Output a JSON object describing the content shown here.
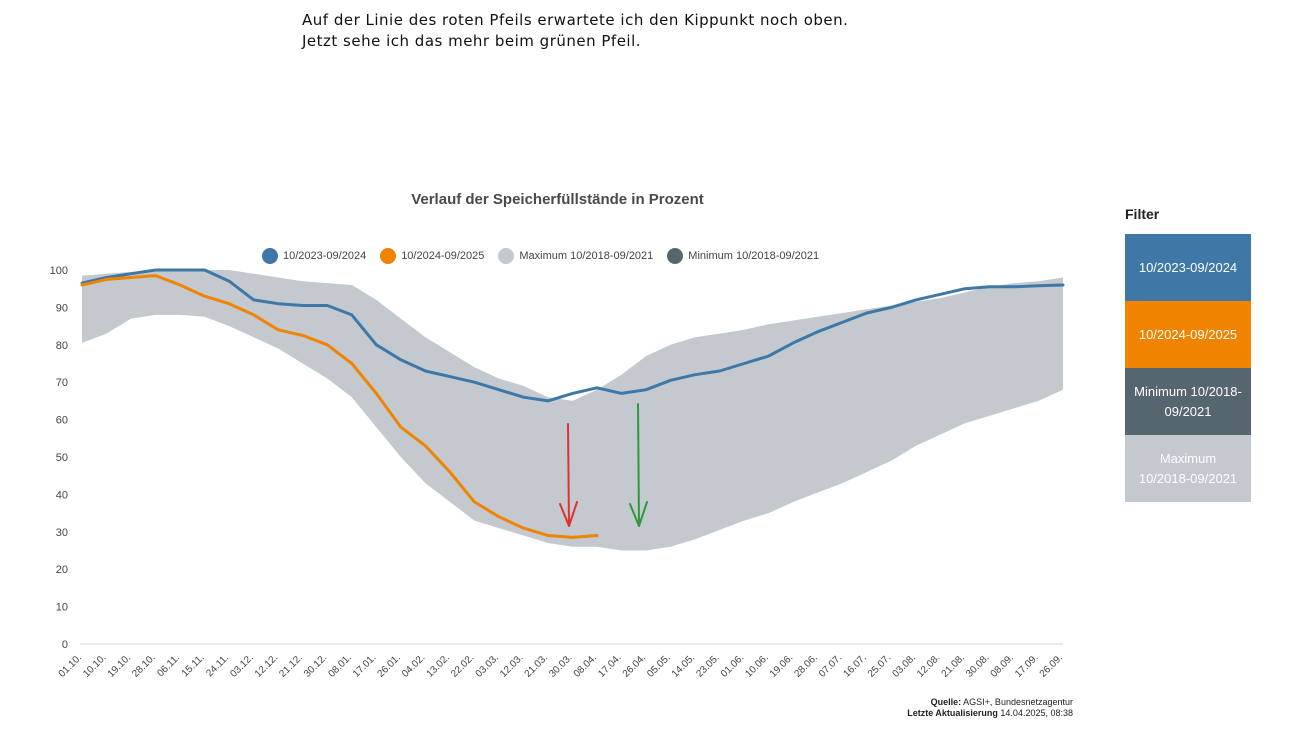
{
  "annotation": {
    "line1": "Auf der Linie des roten Pfeils erwartete ich den Kippunkt noch oben.",
    "line2": "Jetzt sehe ich das mehr beim grünen Pfeil."
  },
  "footer": {
    "source_label": "Quelle:",
    "source_value": "AGSI+, Bundesnetzagentur",
    "updated_label": "Letzte Aktualisierung",
    "updated_value": "14.04.2025, 08:38"
  },
  "filter": {
    "heading": "Filter",
    "buttons": [
      {
        "label": "10/2023-09/2024",
        "color": "#3d78a7"
      },
      {
        "label": "10/2024-09/2025",
        "color": "#f08300"
      },
      {
        "label": "Minimum 10/2018-09/2021",
        "color": "#56666e"
      },
      {
        "label": "Maximum 10/2018-09/2021",
        "color": "#c3c9ce"
      }
    ]
  },
  "chart_data": {
    "type": "line",
    "title": "Verlauf der Speicherfüllstände in Prozent",
    "xlabel": "",
    "ylabel": "",
    "ylim": [
      0,
      100
    ],
    "yticks": [
      0,
      10,
      20,
      30,
      40,
      50,
      60,
      70,
      80,
      90,
      100
    ],
    "categories": [
      "01.10.",
      "10.10.",
      "19.10.",
      "28.10.",
      "06.11.",
      "15.11.",
      "24.11.",
      "03.12.",
      "12.12.",
      "21.12.",
      "30.12.",
      "08.01.",
      "17.01.",
      "26.01.",
      "04.02.",
      "13.02.",
      "22.02.",
      "03.03.",
      "12.03.",
      "21.03.",
      "30.03.",
      "08.04.",
      "17.04.",
      "26.04.",
      "05.05.",
      "14.05.",
      "23.05.",
      "01.06.",
      "10.06.",
      "19.06.",
      "28.06.",
      "07.07.",
      "16.07.",
      "25.07.",
      "03.08.",
      "12.08.",
      "21.08.",
      "30.08.",
      "08.09.",
      "17.09.",
      "26.09."
    ],
    "legend_position": "top-center",
    "grid": false,
    "series": [
      {
        "name": "10/2023-09/2024",
        "color": "#3d78a7",
        "kind": "line",
        "values": [
          96.5,
          98,
          99,
          100,
          100,
          100,
          97,
          92,
          91,
          90.5,
          90.5,
          88,
          80,
          76,
          73,
          71.5,
          70,
          68,
          66,
          65,
          67,
          68.5,
          67,
          68,
          70.5,
          72,
          73,
          75,
          77,
          80.5,
          83.5,
          86,
          88.5,
          90,
          92,
          93.5,
          95,
          95.5,
          95.5,
          95.8,
          96
        ]
      },
      {
        "name": "10/2024-09/2025",
        "color": "#f08300",
        "kind": "line",
        "values": [
          96,
          97.5,
          98,
          98.5,
          96,
          93,
          91,
          88,
          84,
          82.5,
          80,
          75,
          67,
          58,
          53,
          46,
          38,
          34,
          31,
          29,
          28.5,
          29,
          null,
          null,
          null,
          null,
          null,
          null,
          null,
          null,
          null,
          null,
          null,
          null,
          null,
          null,
          null,
          null,
          null,
          null,
          null
        ]
      },
      {
        "name": "Maximum 10/2018-09/2021",
        "color": "#c3c9ce",
        "kind": "band-upper",
        "values": [
          98.5,
          99,
          99.5,
          100,
          100,
          100,
          100,
          99,
          98,
          97,
          96.5,
          96,
          92,
          87,
          82,
          78,
          74,
          71,
          69,
          66,
          65,
          68,
          72,
          77,
          80,
          82,
          83,
          84,
          85.5,
          86.5,
          87.5,
          88.5,
          89.5,
          90.5,
          91.5,
          92.5,
          94,
          95.5,
          96.5,
          97,
          98
        ]
      },
      {
        "name": "Minimum 10/2018-09/2021",
        "color": "#56666e",
        "kind": "band-lower",
        "values": [
          80.5,
          83,
          87,
          88,
          88,
          87.5,
          85,
          82,
          79,
          75,
          71,
          66,
          58,
          50,
          43,
          38,
          33,
          31,
          29,
          27,
          26,
          26,
          25,
          25,
          26,
          28,
          30.5,
          33,
          35,
          38,
          40.5,
          43,
          46,
          49,
          53,
          56,
          59,
          61,
          63,
          65,
          68
        ]
      }
    ]
  }
}
